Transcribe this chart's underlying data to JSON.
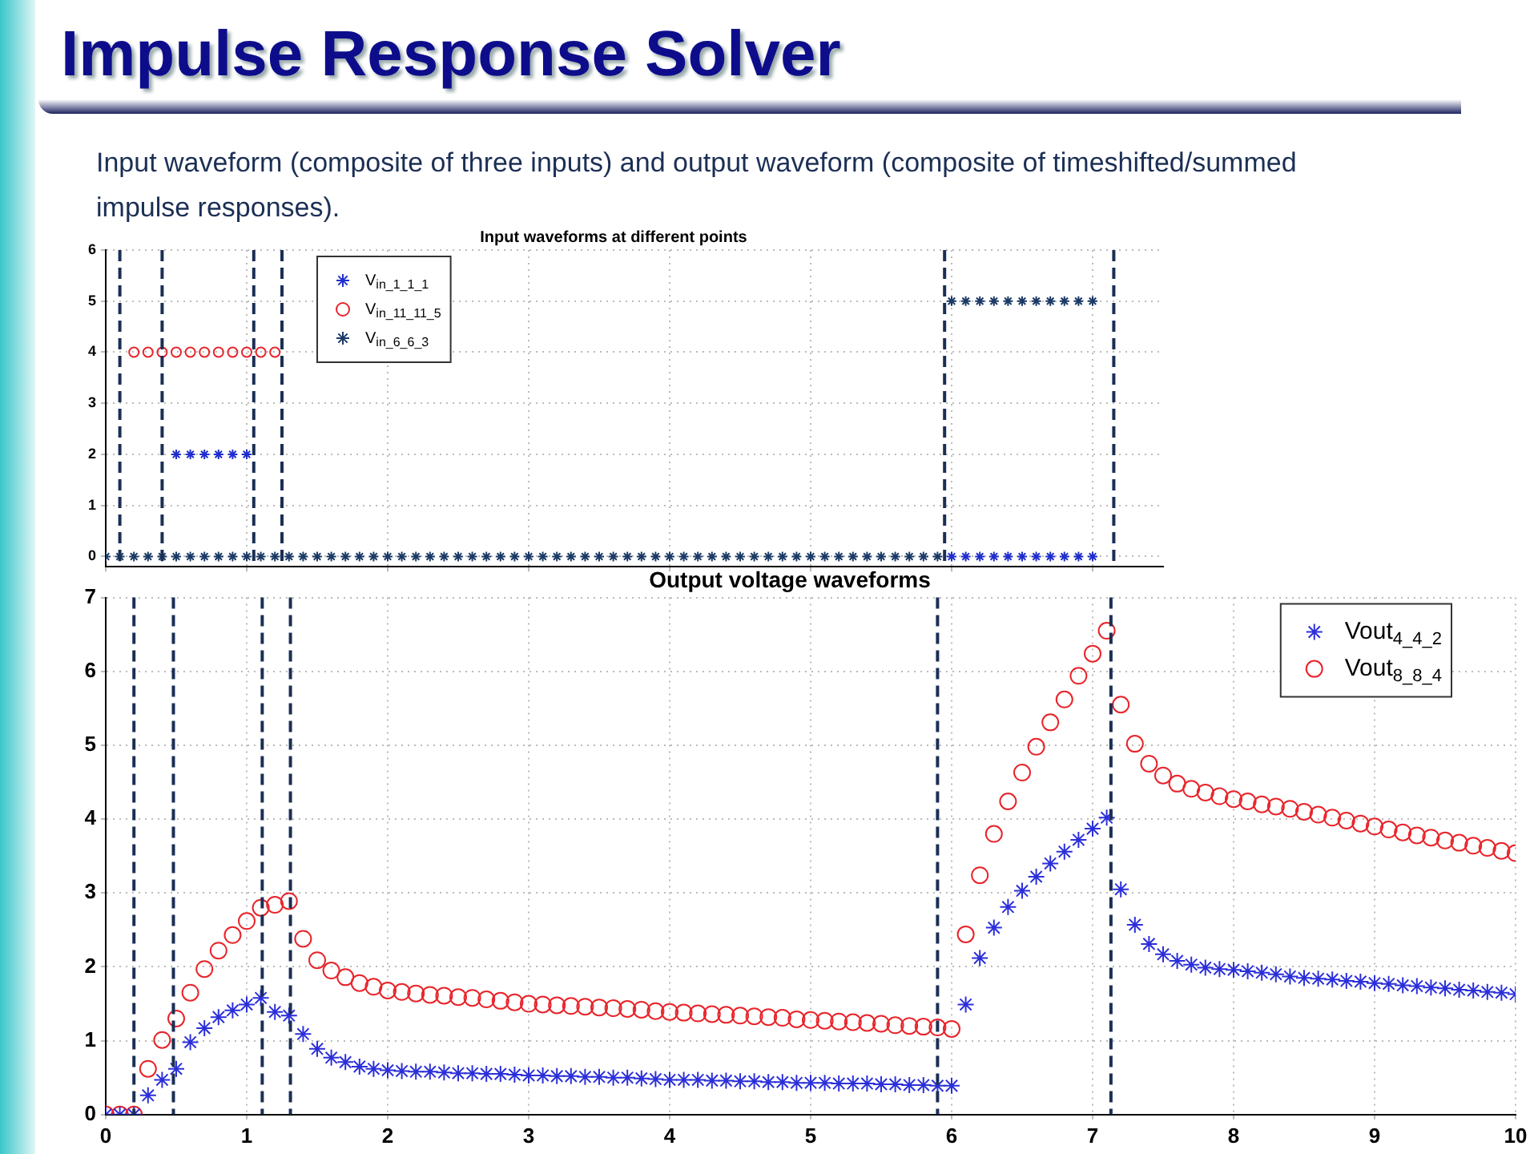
{
  "chart_data": [
    {
      "type": "other",
      "title": "Impulse Response Solver",
      "subtitle": "Input waveform (composite of three inputs) and output waveform (composite of timeshifted/summed impulse responses)."
    },
    {
      "type": "scatter",
      "title": "Input waveforms at different points",
      "x": [
        0,
        0.1,
        0.2,
        0.3,
        0.4,
        0.5,
        0.6,
        0.7,
        0.8,
        0.9,
        1,
        1.1,
        1.2,
        1.3,
        1.4,
        1.5,
        1.6,
        1.7,
        1.8,
        1.9,
        2,
        2.1,
        2.2,
        2.3,
        2.4,
        2.5,
        2.6,
        2.7,
        2.8,
        2.9,
        3,
        3.1,
        3.2,
        3.3,
        3.4,
        3.5,
        3.6,
        3.7,
        3.8,
        3.9,
        4,
        4.1,
        4.2,
        4.3,
        4.4,
        4.5,
        4.6,
        4.7,
        4.8,
        4.9,
        5,
        5.1,
        5.2,
        5.3,
        5.4,
        5.5,
        5.6,
        5.7,
        5.8,
        5.9,
        6,
        6.1,
        6.2,
        6.3,
        6.4,
        6.5,
        6.6,
        6.7,
        6.8,
        6.9,
        7
      ],
      "series": [
        {
          "name": "V$_{in_1_1_1}$",
          "color": "#1f2ecc",
          "marker": "cross",
          "values": [
            null,
            null,
            null,
            null,
            null,
            2,
            2,
            2,
            2,
            2,
            2,
            null,
            null,
            null,
            null,
            null,
            null,
            null,
            null,
            null,
            null,
            null,
            null,
            null,
            null,
            null,
            null,
            null,
            null,
            null,
            null,
            null,
            null,
            null,
            null,
            null,
            null,
            null,
            null,
            null,
            null,
            null,
            null,
            null,
            null,
            null,
            null,
            null,
            null,
            null,
            null,
            null,
            null,
            null,
            null,
            null,
            null,
            null,
            null,
            null,
            0,
            0,
            0,
            0,
            0,
            0,
            0,
            0,
            0,
            0,
            0
          ]
        },
        {
          "name": "V$_{in_11_11_5}$",
          "color": "#e8242a",
          "marker": "circle",
          "values": [
            null,
            null,
            4,
            4,
            4,
            4,
            4,
            4,
            4,
            4,
            4,
            4,
            4,
            null,
            null,
            null,
            null,
            null,
            null,
            null,
            null,
            null,
            null,
            null,
            null,
            null,
            null,
            null,
            null,
            null,
            null,
            null,
            null,
            null,
            null,
            null,
            null,
            null,
            null,
            null,
            null,
            null,
            null,
            null,
            null,
            null,
            null,
            null,
            null,
            null,
            null,
            null,
            null,
            null,
            null,
            null,
            null,
            null,
            null,
            null,
            null,
            null,
            null,
            null,
            null,
            null,
            null,
            null,
            null,
            null,
            null
          ]
        },
        {
          "name": "V$_{in_6_6_3}$",
          "color": "#1b3a66",
          "marker": "cross",
          "values": [
            0,
            0,
            0,
            0,
            0,
            0,
            0,
            0,
            0,
            0,
            0,
            0,
            0,
            0,
            0,
            0,
            0,
            0,
            0,
            0,
            0,
            0,
            0,
            0,
            0,
            0,
            0,
            0,
            0,
            0,
            0,
            0,
            0,
            0,
            0,
            0,
            0,
            0,
            0,
            0,
            0,
            0,
            0,
            0,
            0,
            0,
            0,
            0,
            0,
            0,
            0,
            0,
            0,
            0,
            0,
            0,
            0,
            0,
            0,
            0,
            5,
            5,
            5,
            5,
            5,
            5,
            5,
            5,
            5,
            5,
            5
          ]
        }
      ],
      "xlim": [
        0,
        7.5
      ],
      "xticks": [
        0,
        1,
        2,
        3,
        4,
        5,
        6,
        7
      ],
      "ylim": [
        -0.2,
        6
      ],
      "yticks": [
        0,
        1,
        2,
        3,
        4,
        5,
        6
      ],
      "tick_labels": "y",
      "grid": true,
      "legend": "top left",
      "ref_lines": [
        {
          "axis": "x",
          "value": 0.1,
          "color": "#1b2f55",
          "line_style": "dashed"
        },
        {
          "axis": "x",
          "value": 0.4,
          "color": "#1b2f55",
          "line_style": "dashed"
        },
        {
          "axis": "x",
          "value": 1.05,
          "color": "#1b2f55",
          "line_style": "dashed"
        },
        {
          "axis": "x",
          "value": 1.25,
          "color": "#1b2f55",
          "line_style": "dashed"
        },
        {
          "axis": "x",
          "value": 5.95,
          "color": "#1b2f55",
          "line_style": "dashed"
        },
        {
          "axis": "x",
          "value": 7.15,
          "color": "#1b2f55",
          "line_style": "dashed"
        }
      ]
    },
    {
      "type": "scatter",
      "title": "Output voltage waveforms",
      "x": [
        0,
        0.1,
        0.2,
        0.3,
        0.4,
        0.5,
        0.6,
        0.7,
        0.8,
        0.9,
        1,
        1.1,
        1.2,
        1.3,
        1.4,
        1.5,
        1.6,
        1.7,
        1.8,
        1.9,
        2,
        2.1,
        2.2,
        2.3,
        2.4,
        2.5,
        2.6,
        2.7,
        2.8,
        2.9,
        3,
        3.1,
        3.2,
        3.3,
        3.4,
        3.5,
        3.6,
        3.7,
        3.8,
        3.9,
        4,
        4.1,
        4.2,
        4.3,
        4.4,
        4.5,
        4.6,
        4.7,
        4.8,
        4.9,
        5,
        5.1,
        5.2,
        5.3,
        5.4,
        5.5,
        5.6,
        5.7,
        5.8,
        5.9,
        6,
        6.1,
        6.2,
        6.3,
        6.4,
        6.5,
        6.6,
        6.7,
        6.8,
        6.9,
        7,
        7.1,
        7.2,
        7.3,
        7.4,
        7.5,
        7.6,
        7.7,
        7.8,
        7.9,
        8,
        8.1,
        8.2,
        8.3,
        8.4,
        8.5,
        8.6,
        8.7,
        8.8,
        8.9,
        9,
        9.1,
        9.2,
        9.3,
        9.4,
        9.5,
        9.6,
        9.7,
        9.8,
        9.9,
        10
      ],
      "series": [
        {
          "name": "Vout$_{4_4_2}$",
          "color": "#2b2fd9",
          "marker": "cross",
          "values": [
            0,
            0,
            0,
            0.26,
            0.47,
            0.62,
            0.98,
            1.17,
            1.32,
            1.41,
            1.49,
            1.58,
            1.39,
            1.34,
            1.09,
            0.89,
            0.77,
            0.71,
            0.65,
            0.62,
            0.6,
            0.59,
            0.58,
            0.58,
            0.57,
            0.56,
            0.56,
            0.55,
            0.55,
            0.54,
            0.53,
            0.53,
            0.52,
            0.52,
            0.51,
            0.51,
            0.5,
            0.5,
            0.49,
            0.48,
            0.47,
            0.47,
            0.47,
            0.46,
            0.46,
            0.45,
            0.45,
            0.44,
            0.44,
            0.43,
            0.43,
            0.43,
            0.42,
            0.42,
            0.42,
            0.41,
            0.41,
            0.4,
            0.4,
            0.39,
            0.39,
            1.49,
            2.12,
            2.53,
            2.81,
            3.03,
            3.22,
            3.4,
            3.56,
            3.72,
            3.87,
            4.02,
            3.05,
            2.57,
            2.31,
            2.17,
            2.08,
            2.03,
            1.99,
            1.97,
            1.96,
            1.94,
            1.92,
            1.9,
            1.87,
            1.85,
            1.84,
            1.83,
            1.81,
            1.8,
            1.78,
            1.77,
            1.75,
            1.74,
            1.72,
            1.71,
            1.69,
            1.68,
            1.66,
            1.65,
            1.63
          ]
        },
        {
          "name": "Vout$_{8_8_4}$",
          "color": "#e8242a",
          "marker": "circle",
          "values": [
            0,
            0,
            0,
            0.62,
            1.01,
            1.3,
            1.65,
            1.97,
            2.22,
            2.43,
            2.62,
            2.8,
            2.84,
            2.89,
            2.38,
            2.09,
            1.95,
            1.86,
            1.78,
            1.73,
            1.68,
            1.66,
            1.64,
            1.62,
            1.61,
            1.59,
            1.58,
            1.56,
            1.54,
            1.52,
            1.5,
            1.49,
            1.48,
            1.47,
            1.46,
            1.45,
            1.44,
            1.43,
            1.42,
            1.4,
            1.39,
            1.38,
            1.37,
            1.36,
            1.35,
            1.34,
            1.33,
            1.32,
            1.31,
            1.29,
            1.28,
            1.27,
            1.26,
            1.25,
            1.24,
            1.23,
            1.21,
            1.2,
            1.19,
            1.18,
            1.16,
            2.44,
            3.24,
            3.8,
            4.24,
            4.63,
            4.98,
            5.31,
            5.62,
            5.94,
            6.24,
            6.55,
            5.55,
            5.02,
            4.75,
            4.59,
            4.48,
            4.41,
            4.36,
            4.31,
            4.27,
            4.24,
            4.2,
            4.17,
            4.14,
            4.1,
            4.06,
            4.02,
            3.98,
            3.94,
            3.9,
            3.86,
            3.82,
            3.78,
            3.75,
            3.71,
            3.68,
            3.64,
            3.61,
            3.57,
            3.54
          ]
        }
      ],
      "xlim": [
        0,
        10
      ],
      "xticks": [
        0,
        1,
        2,
        3,
        4,
        5,
        6,
        7,
        8,
        9,
        10
      ],
      "ylim": [
        0,
        7
      ],
      "yticks": [
        0,
        1,
        2,
        3,
        4,
        5,
        6,
        7
      ],
      "grid": true,
      "legend": "top right",
      "ref_lines": [
        {
          "axis": "x",
          "value": 0.2,
          "color": "#1b2f55",
          "line_style": "dashed"
        },
        {
          "axis": "x",
          "value": 0.48,
          "color": "#1b2f55",
          "line_style": "dashed"
        },
        {
          "axis": "x",
          "value": 1.11,
          "color": "#1b2f55",
          "line_style": "dashed"
        },
        {
          "axis": "x",
          "value": 1.31,
          "color": "#1b2f55",
          "line_style": "dashed"
        },
        {
          "axis": "x",
          "value": 5.9,
          "color": "#1b2f55",
          "line_style": "dashed"
        },
        {
          "axis": "x",
          "value": 7.13,
          "color": "#1b2f55",
          "line_style": "dashed"
        }
      ]
    }
  ]
}
